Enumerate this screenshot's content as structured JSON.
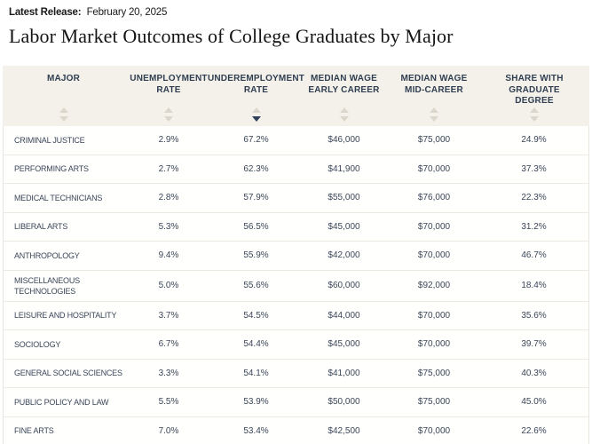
{
  "header": {
    "release_label": "Latest Release:",
    "release_date": "February 20, 2025",
    "title": "Labor Market Outcomes of College Graduates by Major"
  },
  "table": {
    "columns": [
      {
        "key": "major",
        "label": "MAJOR",
        "sort": "none"
      },
      {
        "key": "unemployment-rate",
        "label": "UNEMPLOYMENT\nRATE",
        "sort": "none"
      },
      {
        "key": "underemployment-rate",
        "label": "UNDEREMPLOYMENT\nRATE",
        "sort": "desc"
      },
      {
        "key": "median-wage-early-career",
        "label": "MEDIAN WAGE\nEARLY CAREER",
        "sort": "none"
      },
      {
        "key": "median-wage-mid-career",
        "label": "MEDIAN WAGE\nMID-CAREER",
        "sort": "none"
      },
      {
        "key": "share-with-graduate-degree",
        "label": "SHARE WITH GRADUATE\nDEGREE",
        "sort": "none"
      }
    ],
    "rows": [
      [
        "CRIMINAL JUSTICE",
        "2.9%",
        "67.2%",
        "$46,000",
        "$75,000",
        "24.9%"
      ],
      [
        "PERFORMING ARTS",
        "2.7%",
        "62.3%",
        "$41,900",
        "$70,000",
        "37.3%"
      ],
      [
        "MEDICAL TECHNICIANS",
        "2.8%",
        "57.9%",
        "$55,000",
        "$76,000",
        "22.3%"
      ],
      [
        "LIBERAL ARTS",
        "5.3%",
        "56.5%",
        "$45,000",
        "$70,000",
        "31.2%"
      ],
      [
        "ANTHROPOLOGY",
        "9.4%",
        "55.9%",
        "$42,000",
        "$70,000",
        "46.7%"
      ],
      [
        "MISCELLANEOUS TECHNOLOGIES",
        "5.0%",
        "55.6%",
        "$60,000",
        "$92,000",
        "18.4%"
      ],
      [
        "LEISURE AND HOSPITALITY",
        "3.7%",
        "54.5%",
        "$44,000",
        "$70,000",
        "35.6%"
      ],
      [
        "SOCIOLOGY",
        "6.7%",
        "54.4%",
        "$45,000",
        "$70,000",
        "39.7%"
      ],
      [
        "GENERAL SOCIAL SCIENCES",
        "3.3%",
        "54.1%",
        "$41,000",
        "$75,000",
        "40.3%"
      ],
      [
        "PUBLIC POLICY AND LAW",
        "5.5%",
        "53.9%",
        "$50,000",
        "$75,000",
        "45.0%"
      ],
      [
        "FINE ARTS",
        "7.0%",
        "53.4%",
        "$42,500",
        "$70,000",
        "22.6%"
      ]
    ],
    "colors": {
      "header_bg": "#f4f1ea",
      "header_text": "#2f3e51",
      "arrow_inactive": "#dbd7cc",
      "arrow_active": "#30405a",
      "row_text": "#3b4658",
      "divider": "#eceae3"
    }
  }
}
